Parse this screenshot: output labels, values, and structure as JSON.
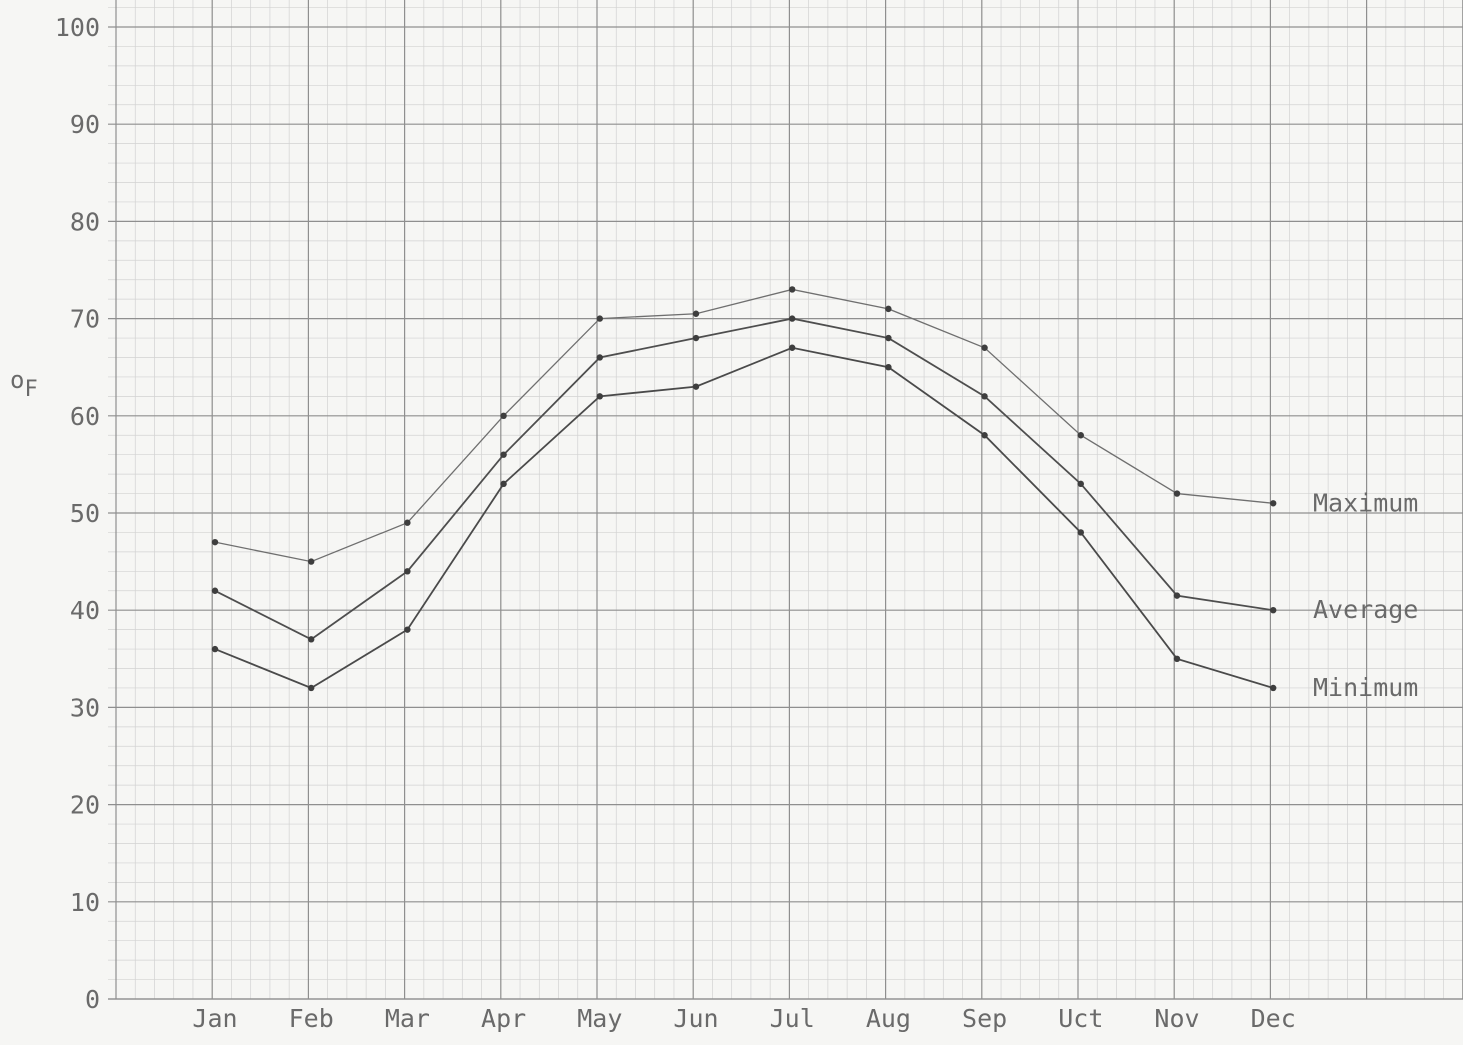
{
  "chart_data": {
    "type": "line",
    "title": "",
    "xlabel": "",
    "ylabel": "oF",
    "ylabel_main": "o",
    "ylabel_sub": "F",
    "categories": [
      "Jan",
      "Feb",
      "Mar",
      "Apr",
      "May",
      "Jun",
      "Jul",
      "Aug",
      "Sep",
      "Uct",
      "Nov",
      "Dec"
    ],
    "yticks": [
      "0",
      "10",
      "20",
      "30",
      "40",
      "50",
      "60",
      "70",
      "80",
      "90",
      "100"
    ],
    "ylim": [
      0,
      100
    ],
    "grid": true,
    "legend": "inline labels at right end of each series",
    "series": [
      {
        "name": "Maximum",
        "key": "max",
        "values": [
          47,
          45,
          49,
          60,
          70,
          70.5,
          73,
          71,
          67,
          58,
          52,
          51
        ]
      },
      {
        "name": "Average",
        "key": "avg",
        "values": [
          42,
          37,
          44,
          56,
          66,
          68,
          70,
          68,
          62,
          53,
          41.5,
          40
        ]
      },
      {
        "name": "Minimum",
        "key": "min",
        "values": [
          36,
          32,
          38,
          53,
          62,
          63,
          67,
          65,
          58,
          48,
          35,
          32
        ]
      }
    ]
  }
}
